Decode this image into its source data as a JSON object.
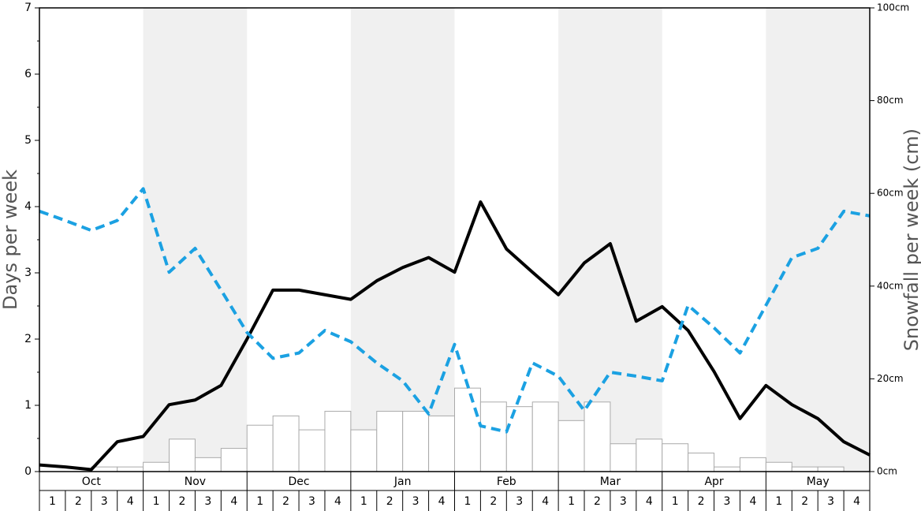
{
  "chart_data": {
    "type": "bar",
    "ylabel": "Days per week",
    "y2label": "Snowfall per week (cm)",
    "months": [
      "Oct",
      "Nov",
      "Dec",
      "Jan",
      "Feb",
      "Mar",
      "Apr",
      "May"
    ],
    "shaded_months": [
      1,
      3,
      5,
      7
    ],
    "shade_color": "#f0f0f0",
    "categories": [
      "1",
      "2",
      "3",
      "4",
      "1",
      "2",
      "3",
      "4",
      "1",
      "2",
      "3",
      "4",
      "1",
      "2",
      "3",
      "4",
      "1",
      "2",
      "3",
      "4",
      "1",
      "2",
      "3",
      "4",
      "1",
      "2",
      "3",
      "4",
      "1",
      "2",
      "3",
      "4"
    ],
    "xlim": [
      0,
      32
    ],
    "ylim": [
      0,
      7
    ],
    "yticks": [
      0,
      1,
      2,
      3,
      4,
      5,
      6,
      7
    ],
    "yminorticks": [
      0.5,
      1.5,
      2.5,
      3.5,
      4.5,
      5.5,
      6.5
    ],
    "y2lim": [
      0,
      100
    ],
    "y2ticks": [
      {
        "value": 0,
        "label": "0cm"
      },
      {
        "value": 20,
        "label": "20cm"
      },
      {
        "value": 40,
        "label": "40cm"
      },
      {
        "value": 60,
        "label": "60cm"
      },
      {
        "value": 80,
        "label": "80cm"
      },
      {
        "value": 100,
        "label": "100cm"
      }
    ],
    "series": [
      {
        "type": "bar",
        "axis": "y2",
        "color": "#ffffff",
        "values": [
          0,
          0,
          1,
          1,
          2,
          7,
          3,
          5,
          10,
          12,
          9,
          13,
          9,
          13,
          13,
          12,
          18,
          15,
          14,
          15,
          11,
          15,
          6,
          7,
          6,
          4,
          1,
          3,
          2,
          1,
          1,
          0
        ]
      },
      {
        "type": "line",
        "color": "#000000",
        "dashed": false,
        "x": [
          0,
          1,
          2,
          3,
          4,
          5,
          6,
          7,
          8,
          9,
          10,
          11,
          12,
          13,
          14,
          15,
          16,
          17,
          18,
          19,
          20,
          21,
          22,
          23,
          24,
          25,
          26,
          27,
          28,
          29,
          30,
          31,
          32
        ],
        "values": [
          0.1,
          0.07,
          0.03,
          0.45,
          0.53,
          1.01,
          1.08,
          1.3,
          2.0,
          2.74,
          2.74,
          2.67,
          2.6,
          2.88,
          3.08,
          3.23,
          3.01,
          4.07,
          3.36,
          3.01,
          2.67,
          3.15,
          3.44,
          2.27,
          2.49,
          2.13,
          1.51,
          0.8,
          1.3,
          1.01,
          0.8,
          0.45,
          0.25
        ]
      },
      {
        "type": "line",
        "color": "#1ba1e2",
        "dashed": true,
        "x": [
          0,
          1,
          2,
          3,
          4,
          5,
          6,
          7,
          8,
          9,
          10,
          11,
          12,
          13,
          14,
          15,
          16,
          17,
          18,
          19,
          20,
          21,
          22,
          23,
          24,
          25,
          26,
          27,
          28,
          29,
          30,
          31,
          32
        ],
        "values": [
          3.93,
          3.79,
          3.64,
          3.79,
          4.27,
          3.01,
          3.37,
          2.74,
          2.1,
          1.71,
          1.79,
          2.13,
          1.96,
          1.64,
          1.37,
          0.87,
          1.92,
          0.69,
          0.6,
          1.64,
          1.44,
          0.92,
          1.5,
          1.44,
          1.37,
          2.51,
          2.17,
          1.79,
          2.51,
          3.23,
          3.37,
          3.93,
          3.86
        ]
      }
    ]
  }
}
